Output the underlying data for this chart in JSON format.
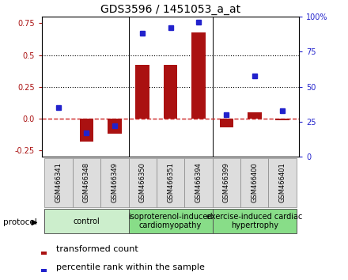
{
  "title": "GDS3596 / 1451053_a_at",
  "samples": [
    "GSM466341",
    "GSM466348",
    "GSM466349",
    "GSM466350",
    "GSM466351",
    "GSM466394",
    "GSM466399",
    "GSM466400",
    "GSM466401"
  ],
  "transformed_count": [
    0.0,
    -0.18,
    -0.12,
    0.42,
    0.42,
    0.68,
    -0.07,
    0.05,
    -0.01
  ],
  "percentile_rank": [
    35,
    17,
    22,
    88,
    92,
    96,
    30,
    58,
    33
  ],
  "ylim_left": [
    -0.3,
    0.8
  ],
  "ylim_right": [
    0,
    100
  ],
  "yticks_left": [
    -0.25,
    0.0,
    0.25,
    0.5,
    0.75
  ],
  "yticks_right": [
    0,
    25,
    50,
    75,
    100
  ],
  "hlines_dotted": [
    0.25,
    0.5
  ],
  "bar_color": "#aa1111",
  "dot_color": "#2222cc",
  "zero_line_color": "#cc2222",
  "bar_width": 0.5,
  "background_color": "#ffffff",
  "title_fontsize": 10,
  "tick_fontsize": 7,
  "legend_fontsize": 8,
  "group_label_fontsize": 7,
  "group_configs": [
    [
      0,
      2,
      "control",
      "#cceecc"
    ],
    [
      3,
      5,
      "isoproterenol-induced\ncardiomyopathy",
      "#88dd88"
    ],
    [
      6,
      8,
      "exercise-induced cardiac\nhypertrophy",
      "#88dd88"
    ]
  ]
}
